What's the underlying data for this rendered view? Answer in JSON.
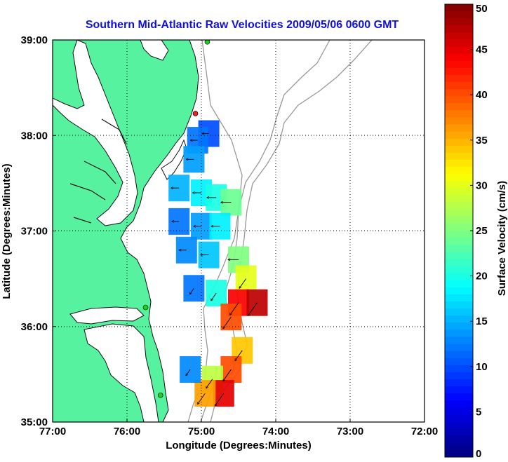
{
  "chart_data": {
    "type": "heatmap",
    "title": "Southern Mid-Atlantic Raw Velocities 2009/05/06 0600 GMT",
    "xlabel": "Longitude (Degrees:Minutes)",
    "ylabel": "Latitude (Degrees:Minutes)",
    "x_ticks": [
      "77:00",
      "76:00",
      "75:00",
      "74:00",
      "73:00",
      "72:00"
    ],
    "x_tick_values": [
      -77,
      -76,
      -75,
      -74,
      -73,
      -72
    ],
    "y_ticks": [
      "39:00",
      "38:00",
      "37:00",
      "36:00",
      "35:00"
    ],
    "y_tick_values": [
      39,
      38,
      37,
      36,
      35
    ],
    "xlim": [
      -77,
      -72
    ],
    "ylim": [
      35,
      39
    ],
    "grid": true,
    "colorbar": {
      "label": "Surface Velocity (cm/s)",
      "ticks": [
        "50",
        "45",
        "40",
        "35",
        "30",
        "25",
        "20",
        "15",
        "10",
        "5",
        "0"
      ],
      "tick_values": [
        50,
        45,
        40,
        35,
        30,
        25,
        20,
        15,
        10,
        5,
        0
      ],
      "range": [
        0,
        50
      ]
    },
    "velocity_cells": [
      {
        "lon": -74.9,
        "lat": 38.02,
        "speed": 10
      },
      {
        "lon": -75.05,
        "lat": 37.95,
        "speed": 12
      },
      {
        "lon": -75.1,
        "lat": 37.75,
        "speed": 14
      },
      {
        "lon": -75.3,
        "lat": 37.45,
        "speed": 15
      },
      {
        "lon": -75.0,
        "lat": 37.4,
        "speed": 18
      },
      {
        "lon": -74.8,
        "lat": 37.35,
        "speed": 20
      },
      {
        "lon": -74.6,
        "lat": 37.3,
        "speed": 24
      },
      {
        "lon": -75.3,
        "lat": 37.1,
        "speed": 12
      },
      {
        "lon": -75.0,
        "lat": 37.05,
        "speed": 14
      },
      {
        "lon": -74.75,
        "lat": 37.05,
        "speed": 18
      },
      {
        "lon": -75.2,
        "lat": 36.8,
        "speed": 13
      },
      {
        "lon": -74.9,
        "lat": 36.75,
        "speed": 16
      },
      {
        "lon": -74.5,
        "lat": 36.7,
        "speed": 25
      },
      {
        "lon": -74.4,
        "lat": 36.5,
        "speed": 30
      },
      {
        "lon": -75.1,
        "lat": 36.4,
        "speed": 12
      },
      {
        "lon": -74.8,
        "lat": 36.35,
        "speed": 20
      },
      {
        "lon": -74.5,
        "lat": 36.25,
        "speed": 44
      },
      {
        "lon": -74.25,
        "lat": 36.25,
        "speed": 47
      },
      {
        "lon": -74.6,
        "lat": 36.1,
        "speed": 40
      },
      {
        "lon": -74.45,
        "lat": 35.75,
        "speed": 34
      },
      {
        "lon": -74.6,
        "lat": 35.55,
        "speed": 40
      },
      {
        "lon": -74.85,
        "lat": 35.45,
        "speed": 28
      },
      {
        "lon": -74.7,
        "lat": 35.3,
        "speed": 45
      },
      {
        "lon": -74.95,
        "lat": 35.3,
        "speed": 36
      },
      {
        "lon": -75.15,
        "lat": 35.55,
        "speed": 13
      }
    ],
    "site_markers": [
      {
        "lon": -74.92,
        "lat": 38.98,
        "color": "#22cc22"
      },
      {
        "lon": -75.08,
        "lat": 38.23,
        "color": "#ee2222"
      },
      {
        "lon": -75.75,
        "lat": 36.2,
        "color": "#22cc22"
      },
      {
        "lon": -75.55,
        "lat": 35.28,
        "color": "#22cc22"
      }
    ]
  },
  "colors": {
    "land": "#56f2a0",
    "water": "#ffffff",
    "title": "#1010e0",
    "coast": "#000000",
    "bathymetry": "#999999"
  }
}
